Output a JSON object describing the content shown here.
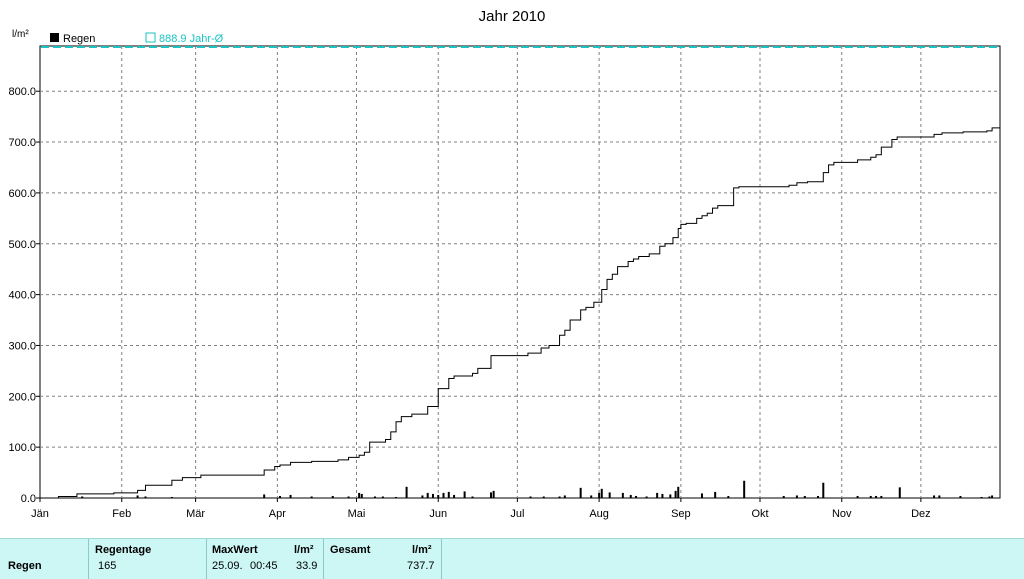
{
  "title": "Jahr 2010",
  "unit_label": "l/m²",
  "legend": {
    "series_label": "Regen",
    "reference_label": "888.9 Jahr-Ø",
    "series_color": "#000000",
    "reference_color": "#19c3c3"
  },
  "stats": {
    "row_label": "Regen",
    "headers": {
      "regentage": "Regentage",
      "maxwert": "MaxWert",
      "maxwert_unit": "l/m²",
      "gesamt": "Gesamt",
      "gesamt_unit": "l/m²"
    },
    "values": {
      "regentage": "165",
      "max_date": "25.09.",
      "max_time": "00:45",
      "max_value": "33.9",
      "gesamt": "737.7"
    }
  },
  "chart_data": {
    "type": "line+bar",
    "title": "Jahr 2010",
    "ylabel": "l/m²",
    "ylim": [
      0,
      888.9
    ],
    "yticks": [
      "0.0",
      "100.0",
      "200.0",
      "300.0",
      "400.0",
      "500.0",
      "600.0",
      "700.0",
      "800.0"
    ],
    "xlim_day_of_year": [
      1,
      365
    ],
    "xticks": [
      {
        "label": "Jän",
        "day": 1
      },
      {
        "label": "Feb",
        "day": 32
      },
      {
        "label": "Mär",
        "day": 60
      },
      {
        "label": "Apr",
        "day": 91
      },
      {
        "label": "Mai",
        "day": 121
      },
      {
        "label": "Jun",
        "day": 152
      },
      {
        "label": "Jul",
        "day": 182
      },
      {
        "label": "Aug",
        "day": 213
      },
      {
        "label": "Sep",
        "day": 244
      },
      {
        "label": "Okt",
        "day": 274
      },
      {
        "label": "Nov",
        "day": 305
      },
      {
        "label": "Dez",
        "day": 335
      }
    ],
    "reference_line": {
      "name": "888.9 Jahr-Ø",
      "value": 888.9
    },
    "grid": true,
    "cumulative_series": {
      "name": "Regen",
      "day": [
        1,
        8,
        15,
        29,
        38,
        41,
        51,
        55,
        62,
        77,
        86,
        90,
        92,
        96,
        104,
        114,
        118,
        122,
        124,
        126,
        132,
        134,
        136,
        138,
        140,
        142,
        148,
        152,
        156,
        158,
        163,
        165,
        167,
        172,
        182,
        186,
        191,
        194,
        198,
        200,
        202,
        206,
        208,
        211,
        214,
        216,
        218,
        220,
        224,
        226,
        228,
        232,
        236,
        238,
        241,
        243,
        244,
        246,
        250,
        252,
        254,
        256,
        258,
        262,
        264,
        266,
        268,
        280,
        285,
        288,
        292,
        298,
        300,
        302,
        309,
        311,
        316,
        318,
        320,
        324,
        326,
        340,
        343,
        351,
        360,
        362,
        365
      ],
      "value": [
        0,
        3,
        8,
        10,
        15,
        25,
        35,
        40,
        45,
        45,
        55,
        62,
        65,
        70,
        72,
        75,
        80,
        84,
        90,
        110,
        115,
        130,
        150,
        160,
        160,
        165,
        180,
        215,
        235,
        240,
        240,
        245,
        255,
        280,
        280,
        285,
        295,
        300,
        320,
        330,
        350,
        370,
        375,
        385,
        410,
        430,
        440,
        455,
        465,
        470,
        475,
        480,
        495,
        500,
        512,
        530,
        538,
        540,
        550,
        555,
        560,
        570,
        575,
        575,
        610,
        612,
        612,
        612,
        615,
        620,
        622,
        640,
        655,
        660,
        660,
        665,
        670,
        675,
        690,
        705,
        710,
        715,
        718,
        720,
        722,
        728,
        737.7
      ]
    },
    "daily_bars": {
      "name": "Regen",
      "day": [
        17,
        38,
        41,
        51,
        86,
        92,
        96,
        104,
        112,
        118,
        122,
        123,
        128,
        131,
        136,
        140,
        146,
        148,
        150,
        152,
        154,
        156,
        158,
        162,
        165,
        172,
        173,
        187,
        192,
        198,
        200,
        206,
        210,
        213,
        214,
        217,
        222,
        225,
        227,
        231,
        235,
        237,
        240,
        242,
        243,
        252,
        257,
        262,
        268,
        283,
        288,
        291,
        296,
        298,
        311,
        316,
        318,
        320,
        327,
        340,
        342,
        350,
        358,
        361,
        362
      ],
      "value": [
        3,
        5,
        3,
        2,
        7,
        4,
        6,
        3,
        4,
        3,
        10,
        8,
        3,
        3,
        2,
        22,
        5,
        10,
        8,
        6,
        10,
        12,
        6,
        13,
        3,
        11,
        14,
        3,
        3,
        3,
        5,
        20,
        5,
        10,
        18,
        11,
        10,
        6,
        4,
        3,
        10,
        8,
        7,
        14,
        22,
        9,
        12,
        4,
        33.9,
        4,
        5,
        4,
        4,
        30,
        4,
        4,
        4,
        4,
        21,
        5,
        5,
        4,
        2,
        3,
        5
      ]
    }
  }
}
